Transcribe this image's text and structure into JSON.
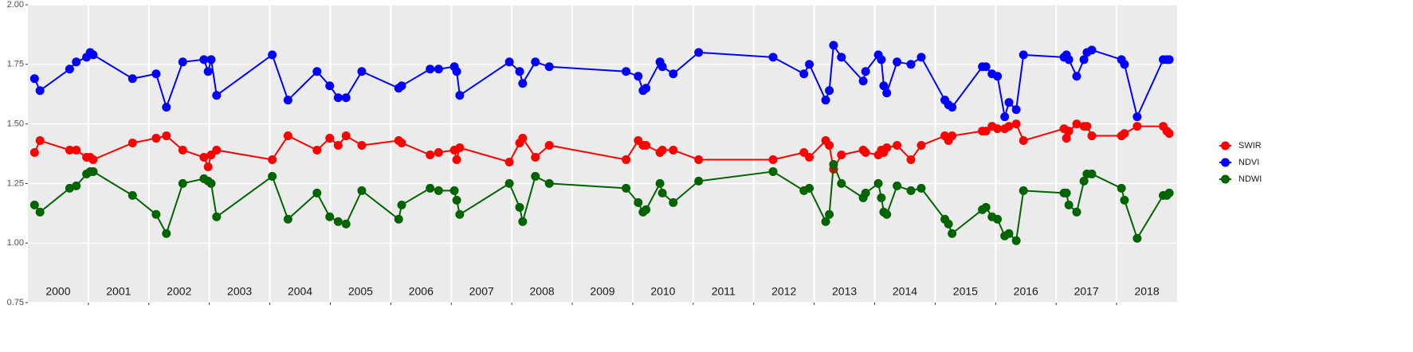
{
  "chart_data": {
    "type": "line",
    "xlim": [
      2000,
      2019
    ],
    "xticks": [
      2001,
      2002,
      2003,
      2004,
      2005,
      2006,
      2007,
      2008,
      2009,
      2010,
      2011,
      2012,
      2013,
      2014,
      2015,
      2016,
      2017,
      2018
    ],
    "x_labels": [
      "2000",
      "2001",
      "2002",
      "2003",
      "2004",
      "2005",
      "2006",
      "2007",
      "2008",
      "2009",
      "2010",
      "2011",
      "2012",
      "2013",
      "2014",
      "2015",
      "2016",
      "2017",
      "2018"
    ],
    "ylim": [
      0.75,
      2.0
    ],
    "yticks": [
      0.75,
      {
        "value": 1.0,
        "label": "1.00"
      },
      1.25,
      {
        "value": 1.5,
        "label": "1.50"
      },
      1.75,
      {
        "value": 2.0,
        "label": "2.00"
      }
    ],
    "grid": true,
    "legend": "right",
    "x": [
      2000.11,
      2000.2,
      2000.69,
      2000.8,
      2000.97,
      2001.03,
      2001.08,
      2001.73,
      2002.12,
      2002.29,
      2002.56,
      2002.91,
      2002.98,
      2003.03,
      2003.12,
      2004.04,
      2004.3,
      2004.78,
      2004.99,
      2005.13,
      2005.26,
      2005.52,
      2006.13,
      2006.18,
      2006.65,
      2006.79,
      2007.05,
      2007.09,
      2007.14,
      2007.96,
      2008.13,
      2008.18,
      2008.39,
      2008.62,
      2009.89,
      2010.09,
      2010.17,
      2010.22,
      2010.45,
      2010.49,
      2010.67,
      2011.09,
      2012.32,
      2012.83,
      2012.92,
      2013.19,
      2013.25,
      2013.32,
      2013.45,
      2013.81,
      2013.85,
      2014.06,
      2014.11,
      2014.15,
      2014.2,
      2014.37,
      2014.6,
      2014.77,
      2015.16,
      2015.22,
      2015.28,
      2015.78,
      2015.84,
      2015.94,
      2016.03,
      2016.15,
      2016.22,
      2016.34,
      2016.46,
      2017.13,
      2017.17,
      2017.21,
      2017.34,
      2017.46,
      2017.51,
      2017.59,
      2018.08,
      2018.13,
      2018.34,
      2018.77,
      2018.83,
      2018.87
    ],
    "series": [
      {
        "name": "SWIR",
        "color": "#ff0000",
        "values": [
          1.38,
          1.43,
          1.39,
          1.39,
          1.36,
          1.36,
          1.35,
          1.42,
          1.44,
          1.45,
          1.39,
          1.36,
          1.32,
          1.37,
          1.39,
          1.35,
          1.45,
          1.39,
          1.44,
          1.41,
          1.45,
          1.41,
          1.43,
          1.42,
          1.37,
          1.38,
          1.39,
          1.35,
          1.4,
          1.34,
          1.42,
          1.44,
          1.36,
          1.41,
          1.35,
          1.43,
          1.41,
          1.41,
          1.38,
          1.39,
          1.39,
          1.35,
          1.35,
          1.38,
          1.36,
          1.43,
          1.41,
          1.31,
          1.37,
          1.39,
          1.38,
          1.37,
          1.39,
          1.38,
          1.4,
          1.41,
          1.35,
          1.41,
          1.45,
          1.43,
          1.45,
          1.47,
          1.47,
          1.49,
          1.48,
          1.48,
          1.49,
          1.5,
          1.43,
          1.48,
          1.44,
          1.47,
          1.5,
          1.49,
          1.49,
          1.45,
          1.45,
          1.46,
          1.49,
          1.49,
          1.47,
          1.46
        ]
      },
      {
        "name": "NDVI",
        "color": "#0000ff",
        "values": [
          1.69,
          1.64,
          1.73,
          1.76,
          1.78,
          1.8,
          1.79,
          1.69,
          1.71,
          1.57,
          1.76,
          1.77,
          1.72,
          1.77,
          1.62,
          1.79,
          1.6,
          1.72,
          1.66,
          1.61,
          1.61,
          1.72,
          1.65,
          1.66,
          1.73,
          1.73,
          1.74,
          1.72,
          1.62,
          1.76,
          1.72,
          1.67,
          1.76,
          1.74,
          1.72,
          1.7,
          1.64,
          1.65,
          1.76,
          1.74,
          1.71,
          1.8,
          1.78,
          1.71,
          1.75,
          1.6,
          1.64,
          1.83,
          1.78,
          1.68,
          1.72,
          1.79,
          1.77,
          1.66,
          1.63,
          1.76,
          1.75,
          1.78,
          1.6,
          1.58,
          1.57,
          1.74,
          1.74,
          1.71,
          1.7,
          1.53,
          1.59,
          1.56,
          1.79,
          1.78,
          1.79,
          1.77,
          1.7,
          1.77,
          1.8,
          1.81,
          1.77,
          1.75,
          1.53,
          1.77,
          1.77,
          1.77
        ]
      },
      {
        "name": "NDWI",
        "color": "#006400",
        "values": [
          1.16,
          1.13,
          1.23,
          1.24,
          1.29,
          1.3,
          1.3,
          1.2,
          1.12,
          1.04,
          1.25,
          1.27,
          1.26,
          1.25,
          1.11,
          1.28,
          1.1,
          1.21,
          1.11,
          1.09,
          1.08,
          1.22,
          1.1,
          1.16,
          1.23,
          1.22,
          1.22,
          1.18,
          1.12,
          1.25,
          1.15,
          1.09,
          1.28,
          1.25,
          1.23,
          1.17,
          1.13,
          1.14,
          1.25,
          1.21,
          1.17,
          1.26,
          1.3,
          1.22,
          1.23,
          1.09,
          1.12,
          1.33,
          1.25,
          1.19,
          1.21,
          1.25,
          1.19,
          1.13,
          1.12,
          1.24,
          1.22,
          1.23,
          1.1,
          1.08,
          1.04,
          1.14,
          1.15,
          1.11,
          1.1,
          1.03,
          1.04,
          1.01,
          1.22,
          1.21,
          1.21,
          1.16,
          1.13,
          1.26,
          1.29,
          1.29,
          1.23,
          1.18,
          1.02,
          1.2,
          1.2,
          1.21
        ]
      }
    ]
  }
}
